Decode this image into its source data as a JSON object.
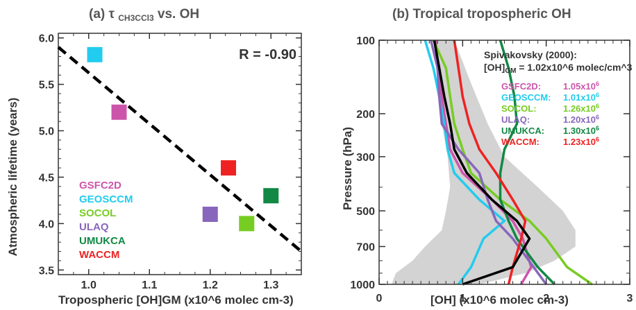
{
  "chart_data": [
    {
      "type": "scatter",
      "title": "(a) τCH3CCl3 vs. OH",
      "xlabel": "Tropospheric [OH]GM (x10^6 molec cm-3)",
      "ylabel": "Atmospheric lifetime (years)",
      "xlim": [
        0.95,
        1.35
      ],
      "ylim": [
        3.45,
        6.05
      ],
      "xticks": [
        "1.0",
        "1.1",
        "1.2",
        "1.3"
      ],
      "yticks": [
        "3.5",
        "4.0",
        "4.5",
        "5.0",
        "5.5",
        "6.0"
      ],
      "annotation": "R = -0.90",
      "legend_position": "bottom-left",
      "grid": false,
      "fit_line": {
        "x": [
          0.95,
          1.35
        ],
        "y": [
          5.9,
          3.7
        ]
      },
      "points": [
        {
          "name": "GSFC2D",
          "x": 1.05,
          "y": 5.2,
          "color": "#cc55aa"
        },
        {
          "name": "GEOSCCM",
          "x": 1.01,
          "y": 5.82,
          "color": "#22ccee"
        },
        {
          "name": "SOCOL",
          "x": 1.26,
          "y": 4.0,
          "color": "#77cc22"
        },
        {
          "name": "ULAQ",
          "x": 1.2,
          "y": 4.1,
          "color": "#8866bb"
        },
        {
          "name": "UMUKCA",
          "x": 1.3,
          "y": 4.3,
          "color": "#118844"
        },
        {
          "name": "WACCM",
          "x": 1.23,
          "y": 4.6,
          "color": "#ee2222"
        }
      ]
    },
    {
      "type": "line",
      "title": "(b) Tropical tropospheric OH",
      "xlabel": "[OH] (x10^6 molec cm-3)",
      "ylabel": "Pressure (hPa)",
      "xlim": [
        0,
        3
      ],
      "ylim": [
        100,
        1000
      ],
      "y_scale": "log",
      "xticks": [
        "0",
        "1",
        "2",
        "3"
      ],
      "yticks": [
        "100",
        "200",
        "300",
        "500",
        "700",
        "1000"
      ],
      "annotation_title": "Spivakovsky (2000):",
      "annotation_text": "1.02x10^6 molec/cm^3",
      "legend_position": "top-right",
      "series": [
        {
          "name": "GSFC2D:",
          "value": "1.05x10",
          "color": "#cc55aa",
          "x": [
            0.68,
            0.7,
            0.75,
            0.8,
            0.85,
            1.0,
            1.35,
            1.6,
            1.72,
            1.82,
            1.7
          ],
          "y": [
            100,
            130,
            170,
            220,
            280,
            350,
            450,
            550,
            650,
            850,
            1000
          ]
        },
        {
          "name": "GEOSCCM:",
          "value": "1.01x10",
          "color": "#22ccee",
          "x": [
            0.55,
            0.65,
            0.72,
            0.78,
            0.82,
            0.9,
            1.2,
            1.5,
            1.25,
            1.1,
            0.95
          ],
          "y": [
            100,
            130,
            170,
            220,
            280,
            350,
            450,
            550,
            650,
            850,
            1000
          ]
        },
        {
          "name": "SOCOL:",
          "value": "1.26x10",
          "color": "#77cc22",
          "x": [
            0.65,
            0.8,
            0.85,
            0.9,
            1.0,
            1.1,
            1.45,
            1.8,
            2.0,
            2.25,
            2.55
          ],
          "y": [
            100,
            130,
            170,
            220,
            280,
            350,
            450,
            550,
            650,
            850,
            1000
          ]
        },
        {
          "name": "ULAQ:",
          "value": "1.20x10",
          "color": "#8866bb",
          "x": [
            0.62,
            0.7,
            0.72,
            0.75,
            0.95,
            1.2,
            1.3,
            1.4,
            1.6,
            1.85,
            2.0
          ],
          "y": [
            100,
            130,
            170,
            220,
            280,
            350,
            450,
            550,
            650,
            850,
            1000
          ]
        },
        {
          "name": "UMUKCA:",
          "value": "1.30x10",
          "color": "#118844",
          "x": [
            1.45,
            1.55,
            1.62,
            1.65,
            1.5,
            1.45,
            1.45,
            1.55,
            1.65,
            1.9,
            2.1
          ],
          "y": [
            100,
            130,
            170,
            220,
            280,
            350,
            450,
            550,
            650,
            850,
            1000
          ]
        },
        {
          "name": "WACCM:",
          "value": "1.23x10",
          "color": "#ee2222",
          "x": [
            0.9,
            0.95,
            1.0,
            1.08,
            1.2,
            1.4,
            1.6,
            1.75,
            1.7,
            1.6,
            1.55
          ],
          "y": [
            100,
            130,
            170,
            220,
            280,
            350,
            450,
            550,
            650,
            850,
            1000
          ]
        },
        {
          "name": "",
          "value": "",
          "color": "#000000",
          "x": [
            0.66,
            0.72,
            0.78,
            0.85,
            0.9,
            1.05,
            1.35,
            1.65,
            1.8,
            1.6,
            1.0
          ],
          "y": [
            100,
            130,
            170,
            220,
            280,
            350,
            450,
            550,
            650,
            850,
            1000
          ]
        }
      ],
      "shaded_range": {
        "color": "#d3d3d3",
        "y": [
          100,
          150,
          220,
          300,
          400,
          500,
          600,
          700,
          800,
          900,
          1000
        ],
        "x_low": [
          0.65,
          0.7,
          0.75,
          0.82,
          0.85,
          0.8,
          0.75,
          0.55,
          0.4,
          0.2,
          0.15
        ],
        "x_high": [
          0.9,
          1.1,
          1.3,
          1.5,
          1.9,
          2.2,
          2.35,
          2.35,
          2.1,
          1.75,
          1.2
        ]
      }
    }
  ]
}
